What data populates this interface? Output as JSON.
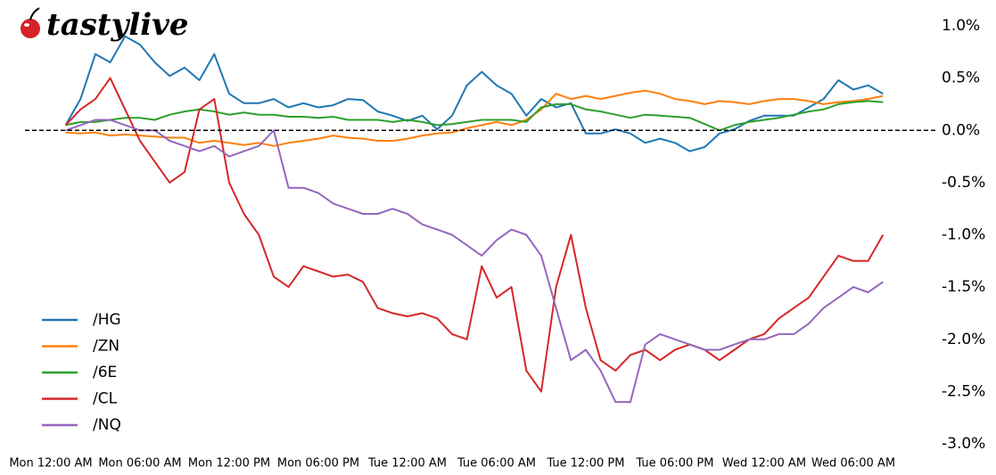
{
  "chart_data": {
    "type": "line",
    "logo": "tastylive",
    "x": [
      1,
      2,
      3,
      4,
      5,
      6,
      7,
      8,
      9,
      10,
      11,
      12,
      13,
      14,
      15,
      16,
      17,
      18,
      19,
      20,
      21,
      22,
      23,
      24,
      25,
      26,
      27,
      28,
      29,
      30,
      31,
      32,
      33,
      34,
      35,
      36,
      37,
      38,
      39,
      40,
      41,
      42,
      43,
      44,
      45,
      46,
      47,
      48,
      49,
      50,
      51,
      52,
      53,
      54,
      55,
      56
    ],
    "xlim": [
      -2.5,
      57.5
    ],
    "xticks": [
      {
        "value": 0,
        "label": "Mon 12:00 AM"
      },
      {
        "value": 6,
        "label": "Mon 06:00 AM"
      },
      {
        "value": 12,
        "label": "Mon 12:00 PM"
      },
      {
        "value": 18,
        "label": "Mon 06:00 PM"
      },
      {
        "value": 24,
        "label": "Tue 12:00 AM"
      },
      {
        "value": 30,
        "label": "Tue 06:00 AM"
      },
      {
        "value": 36,
        "label": "Tue 12:00 PM"
      },
      {
        "value": 42,
        "label": "Tue 06:00 PM"
      },
      {
        "value": 48,
        "label": "Wed 12:00 AM"
      },
      {
        "value": 54,
        "label": "Wed 06:00 AM"
      }
    ],
    "ylim": [
      -3.0,
      1.0
    ],
    "yticks": [
      {
        "value": 1.0,
        "label": "1.0%"
      },
      {
        "value": 0.5,
        "label": "0.5%"
      },
      {
        "value": 0.0,
        "label": "0.0%"
      },
      {
        "value": -0.5,
        "label": "-0.5%"
      },
      {
        "value": -1.0,
        "label": "-1.0%"
      },
      {
        "value": -1.5,
        "label": "-1.5%"
      },
      {
        "value": -2.0,
        "label": "-2.0%"
      },
      {
        "value": -2.5,
        "label": "-2.5%"
      },
      {
        "value": -3.0,
        "label": "-3.0%"
      }
    ],
    "grid": false,
    "hline": 0,
    "legend": "lower left",
    "series": [
      {
        "name": "/HG",
        "color": "#1f77b4",
        "values": [
          0.05,
          0.3,
          0.73,
          0.65,
          0.9,
          0.82,
          0.65,
          0.52,
          0.6,
          0.48,
          0.73,
          0.35,
          0.26,
          0.26,
          0.3,
          0.22,
          0.26,
          0.22,
          0.24,
          0.3,
          0.29,
          0.18,
          0.14,
          0.09,
          0.14,
          0.01,
          0.14,
          0.43,
          0.56,
          0.43,
          0.35,
          0.14,
          0.3,
          0.22,
          0.26,
          -0.03,
          -0.03,
          0.01,
          -0.03,
          -0.12,
          -0.08,
          -0.12,
          -0.2,
          -0.16,
          -0.03,
          0.01,
          0.09,
          0.14,
          0.14,
          0.14,
          0.22,
          0.3,
          0.48,
          0.39,
          0.43,
          0.35
        ]
      },
      {
        "name": "/ZN",
        "color": "#ff7f0e",
        "values": [
          -0.02,
          -0.03,
          -0.02,
          -0.05,
          -0.04,
          -0.05,
          -0.06,
          -0.07,
          -0.07,
          -0.12,
          -0.1,
          -0.12,
          -0.14,
          -0.12,
          -0.15,
          -0.12,
          -0.1,
          -0.08,
          -0.05,
          -0.07,
          -0.08,
          -0.1,
          -0.1,
          -0.08,
          -0.05,
          -0.03,
          -0.02,
          0.02,
          0.05,
          0.08,
          0.05,
          0.1,
          0.2,
          0.35,
          0.3,
          0.33,
          0.3,
          0.33,
          0.36,
          0.38,
          0.35,
          0.3,
          0.28,
          0.25,
          0.28,
          0.27,
          0.25,
          0.28,
          0.3,
          0.3,
          0.28,
          0.25,
          0.27,
          0.28,
          0.3,
          0.33
        ]
      },
      {
        "name": "/6E",
        "color": "#2ca02c",
        "values": [
          0.05,
          0.08,
          0.08,
          0.1,
          0.12,
          0.12,
          0.1,
          0.15,
          0.18,
          0.2,
          0.18,
          0.15,
          0.17,
          0.15,
          0.15,
          0.13,
          0.13,
          0.12,
          0.13,
          0.1,
          0.1,
          0.1,
          0.08,
          0.1,
          0.08,
          0.05,
          0.06,
          0.08,
          0.1,
          0.1,
          0.1,
          0.08,
          0.22,
          0.25,
          0.25,
          0.2,
          0.18,
          0.15,
          0.12,
          0.15,
          0.14,
          0.13,
          0.12,
          0.06,
          0.0,
          0.05,
          0.08,
          0.1,
          0.12,
          0.15,
          0.18,
          0.2,
          0.25,
          0.27,
          0.28,
          0.27
        ]
      },
      {
        "name": "/CL",
        "color": "#d62728",
        "values": [
          0.05,
          0.2,
          0.3,
          0.5,
          0.2,
          -0.1,
          -0.3,
          -0.5,
          -0.4,
          0.2,
          0.3,
          -0.5,
          -0.8,
          -1.0,
          -1.4,
          -1.5,
          -1.3,
          -1.35,
          -1.4,
          -1.38,
          -1.45,
          -1.7,
          -1.75,
          -1.78,
          -1.75,
          -1.8,
          -1.95,
          -2.0,
          -1.3,
          -1.6,
          -1.5,
          -2.3,
          -2.5,
          -1.5,
          -1.0,
          -1.7,
          -2.2,
          -2.3,
          -2.15,
          -2.1,
          -2.2,
          -2.1,
          -2.05,
          -2.1,
          -2.2,
          -2.1,
          -2.0,
          -1.95,
          -1.8,
          -1.7,
          -1.6,
          -1.4,
          -1.2,
          -1.25,
          -1.25,
          -1.0
        ]
      },
      {
        "name": "/NQ",
        "color": "#9467bd",
        "values": [
          0.0,
          0.05,
          0.1,
          0.1,
          0.05,
          0.0,
          0.0,
          -0.1,
          -0.15,
          -0.2,
          -0.15,
          -0.25,
          -0.2,
          -0.15,
          0.0,
          -0.55,
          -0.55,
          -0.6,
          -0.7,
          -0.75,
          -0.8,
          -0.8,
          -0.75,
          -0.8,
          -0.9,
          -0.95,
          -1.0,
          -1.1,
          -1.2,
          -1.05,
          -0.95,
          -1.0,
          -1.2,
          -1.7,
          -2.2,
          -2.1,
          -2.3,
          -2.6,
          -2.6,
          -2.05,
          -1.95,
          -2.0,
          -2.05,
          -2.1,
          -2.1,
          -2.05,
          -2.0,
          -2.0,
          -1.95,
          -1.95,
          -1.85,
          -1.7,
          -1.6,
          -1.5,
          -1.55,
          -1.45
        ]
      }
    ]
  }
}
